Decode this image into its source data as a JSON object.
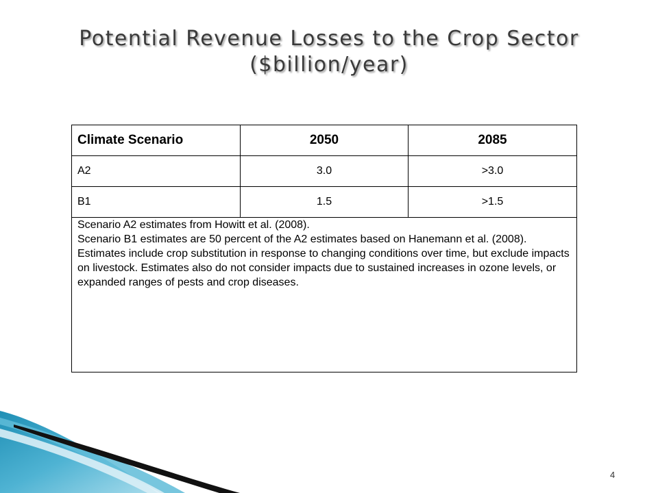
{
  "slide": {
    "title_line1": "Potential Revenue Losses to the Crop Sector",
    "title_line2": "($billion/year)",
    "page_number": "4"
  },
  "table": {
    "headers": [
      "Climate Scenario",
      "2050",
      "2085"
    ],
    "rows": [
      [
        "A2",
        "3.0",
        ">3.0"
      ],
      [
        "B1",
        "1.5",
        ">1.5"
      ]
    ],
    "notes": [
      "Scenario A2 estimates from Howitt et al. (2008).",
      "Scenario B1 estimates are 50 percent of the A2 estimates based on Hanemann et al. (2008).",
      "Estimates include crop substitution in response to changing conditions over time, but exclude impacts on livestock.  Estimates also do not consider impacts due to sustained increases in ozone levels, or expanded ranges of pests and crop diseases."
    ]
  }
}
